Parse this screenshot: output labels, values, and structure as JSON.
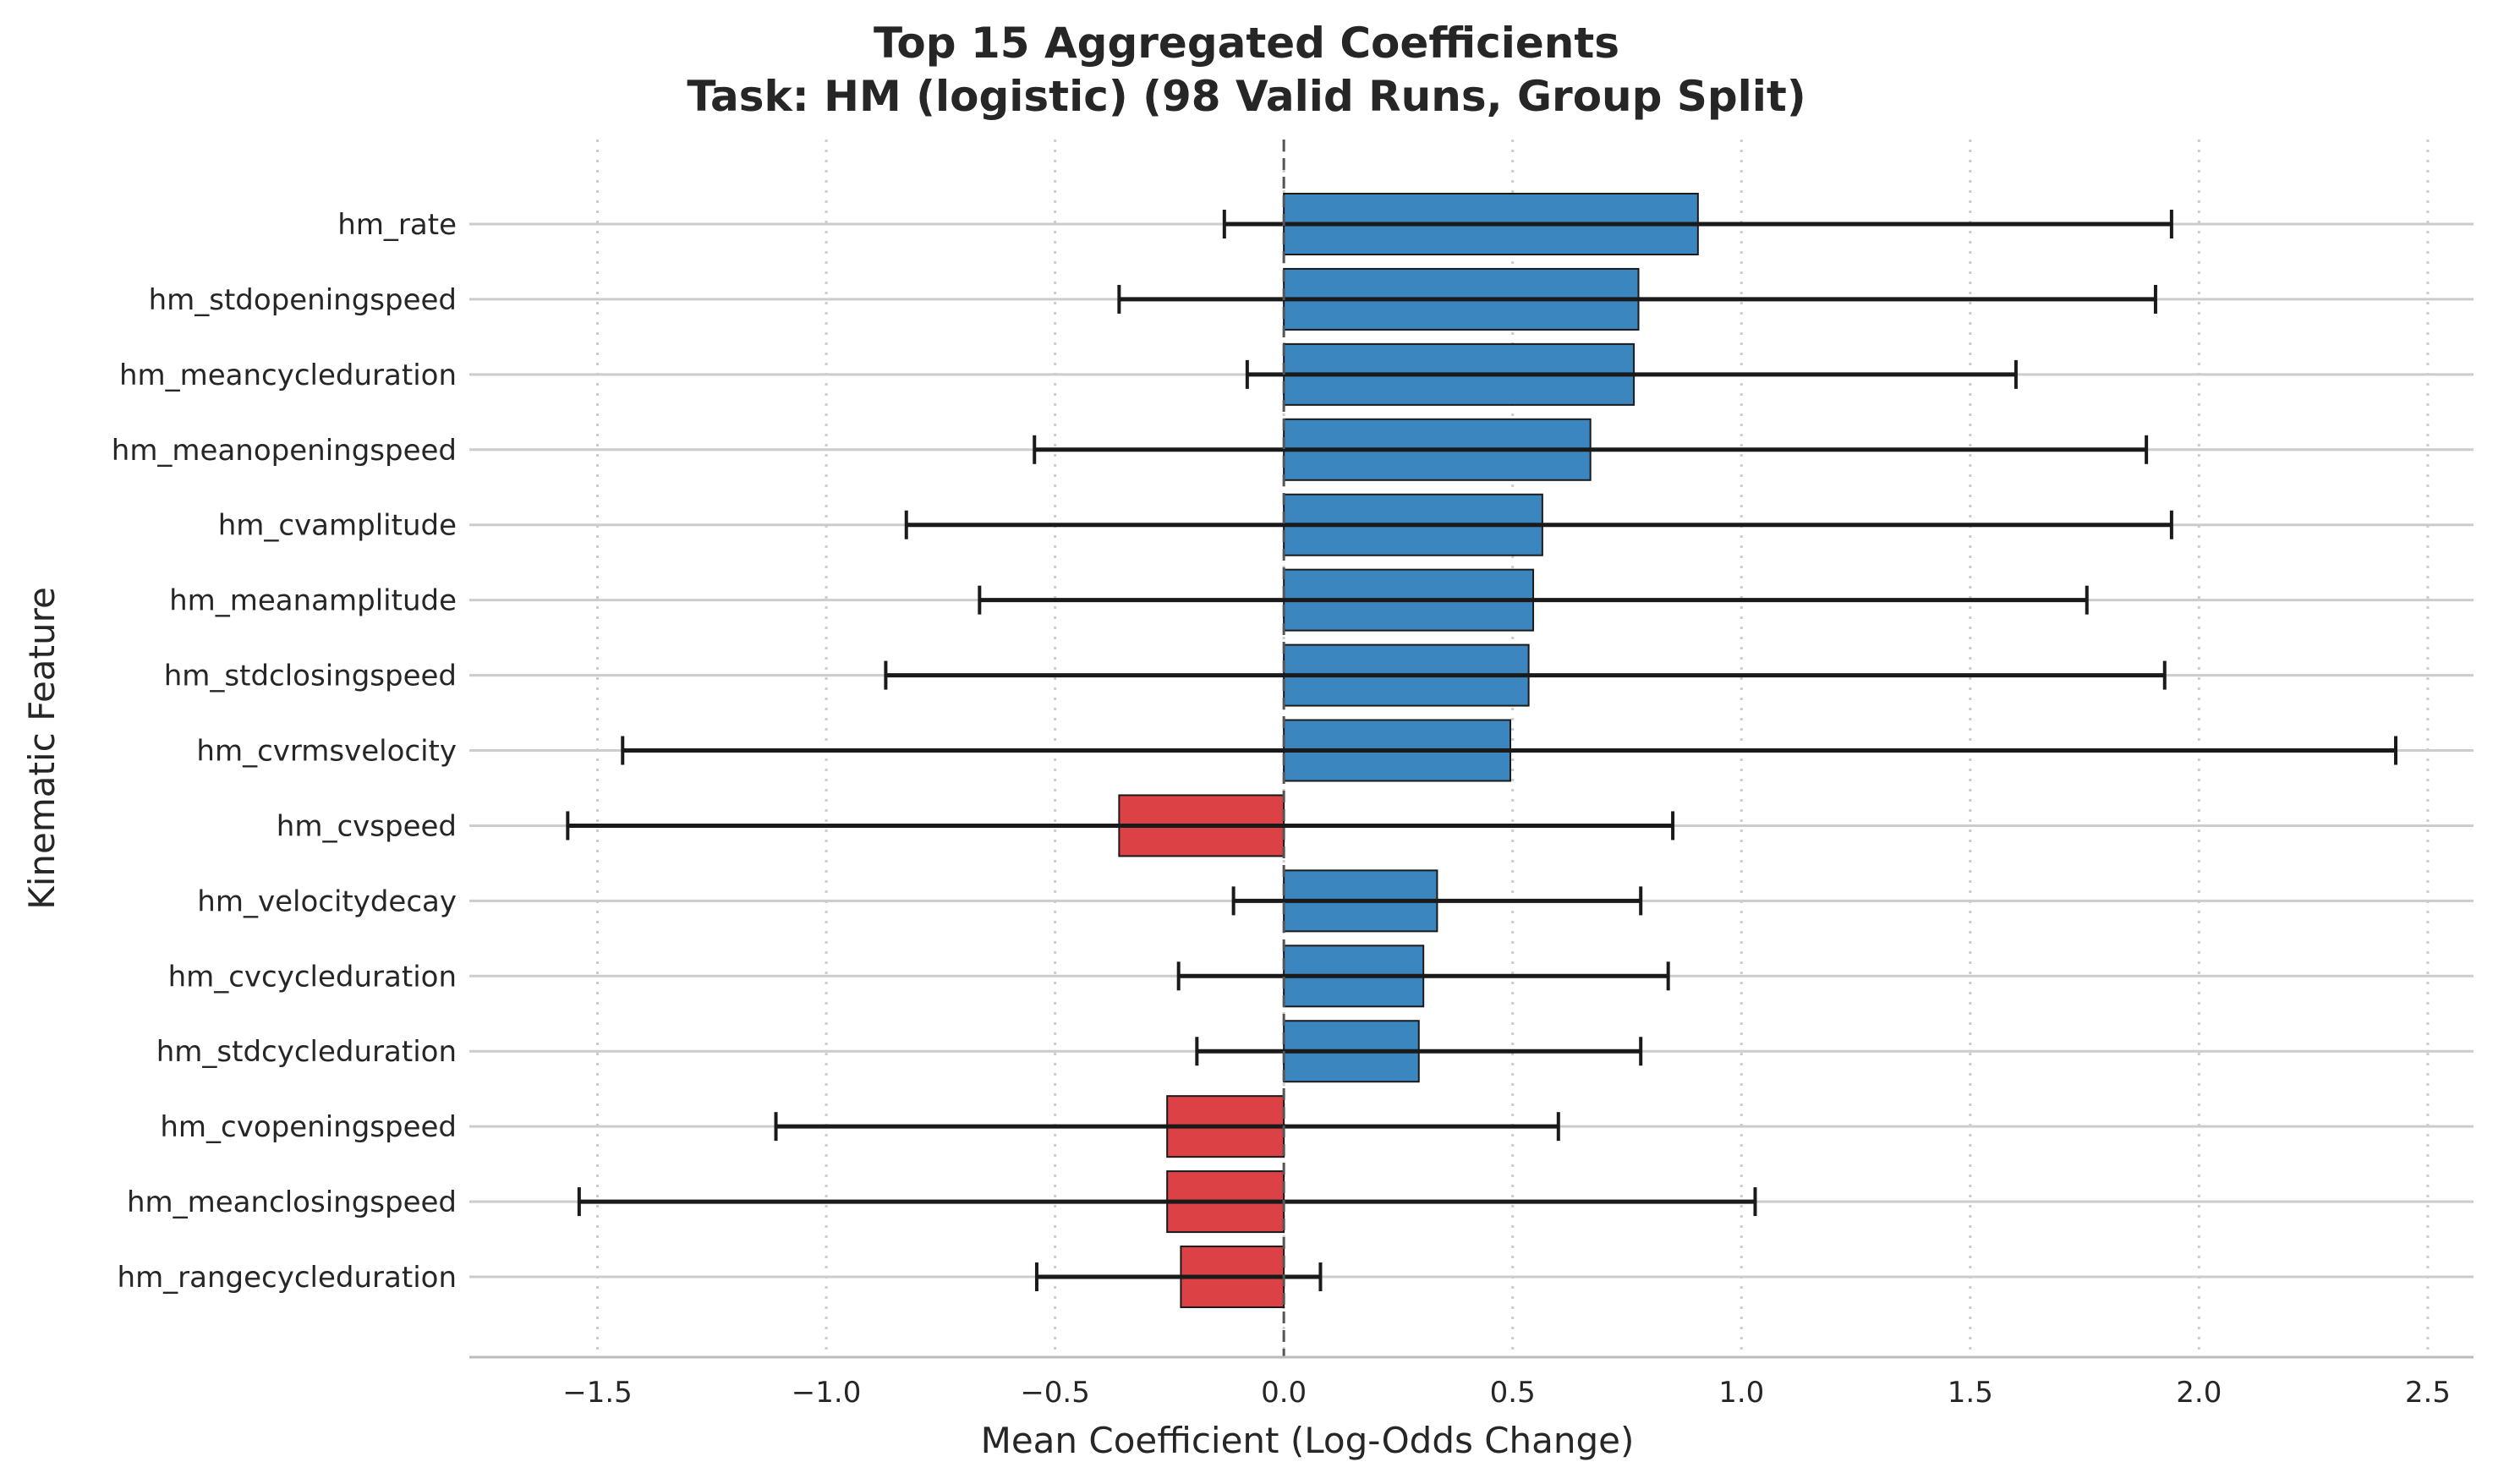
{
  "chart_data": {
    "type": "bar",
    "orientation": "horizontal",
    "title": "Top 15 Aggregated Coefficients",
    "subtitle": "Task: HM (logistic) (98 Valid Runs, Group Split)",
    "xlabel": "Mean Coefficient (Log-Odds Change)",
    "ylabel": "Kinematic Feature",
    "xlim": [
      -1.78,
      2.6
    ],
    "xticks": [
      -1.5,
      -1.0,
      -0.5,
      0.0,
      0.5,
      1.0,
      1.5,
      2.0,
      2.5
    ],
    "xtick_labels": [
      "−1.5",
      "−1.0",
      "−0.5",
      "0.0",
      "0.5",
      "1.0",
      "1.5",
      "2.0",
      "2.5"
    ],
    "grid": {
      "x": "dotted",
      "y": "solid"
    },
    "reference_line": {
      "x": 0.0,
      "style": "dashed"
    },
    "colors": {
      "positive": "#3c86c0",
      "negative": "#dc4245",
      "edge": "#1a1a1a",
      "errorbar": "#1a1a1a"
    },
    "categories": [
      "hm_rate",
      "hm_stdopeningspeed",
      "hm_meancycleduration",
      "hm_meanopeningspeed",
      "hm_cvamplitude",
      "hm_meanamplitude",
      "hm_stdclosingspeed",
      "hm_cvrmsvelocity",
      "hm_cvspeed",
      "hm_velocitydecay",
      "hm_cvcycleduration",
      "hm_stdcycleduration",
      "hm_cvopeningspeed",
      "hm_meanclosingspeed",
      "hm_rangecycleduration"
    ],
    "values": [
      0.905,
      0.775,
      0.765,
      0.67,
      0.565,
      0.545,
      0.535,
      0.495,
      -0.36,
      0.335,
      0.305,
      0.295,
      -0.255,
      -0.255,
      -0.225
    ],
    "error_low": [
      -0.13,
      -0.36,
      -0.08,
      -0.545,
      -0.825,
      -0.665,
      -0.87,
      -1.445,
      -1.565,
      -0.11,
      -0.23,
      -0.19,
      -1.11,
      -1.54,
      -0.54
    ],
    "error_high": [
      1.94,
      1.905,
      1.6,
      1.885,
      1.94,
      1.755,
      1.925,
      2.43,
      0.85,
      0.78,
      0.84,
      0.78,
      0.6,
      1.03,
      0.08
    ]
  }
}
